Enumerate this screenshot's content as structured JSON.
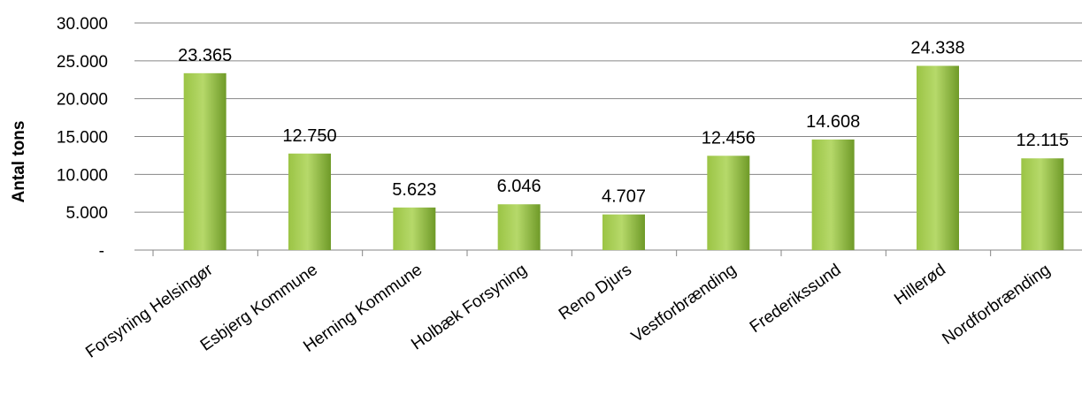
{
  "chart_data": {
    "type": "bar",
    "title": "",
    "xlabel": "",
    "ylabel": "Antal tons",
    "ylim": [
      0,
      30000
    ],
    "yticks": [
      {
        "value": 0,
        "label": "-"
      },
      {
        "value": 5000,
        "label": "5.000"
      },
      {
        "value": 10000,
        "label": "10.000"
      },
      {
        "value": 15000,
        "label": "15.000"
      },
      {
        "value": 20000,
        "label": "20.000"
      },
      {
        "value": 25000,
        "label": "25.000"
      },
      {
        "value": 30000,
        "label": "30.000"
      }
    ],
    "grid": true,
    "categories": [
      "Forsyning Helsingør",
      "Esbjerg Kommune",
      "Herning Kommune",
      "Holbæk Forsyning",
      "Reno Djurs",
      "Vestforbrænding",
      "Frederikssund",
      "Hillerød",
      "Nordforbrænding"
    ],
    "values": [
      23365,
      12750,
      5623,
      6046,
      4707,
      12456,
      14608,
      24338,
      12115
    ],
    "value_labels": [
      "23.365",
      "12.750",
      "5.623",
      "6.046",
      "4.707",
      "12.456",
      "14.608",
      "24.338",
      "12.115"
    ],
    "colors": {
      "bar_light": "#b6d96a",
      "bar_mid": "#9bc445",
      "bar_dark": "#6f9a28",
      "grid": "#868686"
    }
  }
}
